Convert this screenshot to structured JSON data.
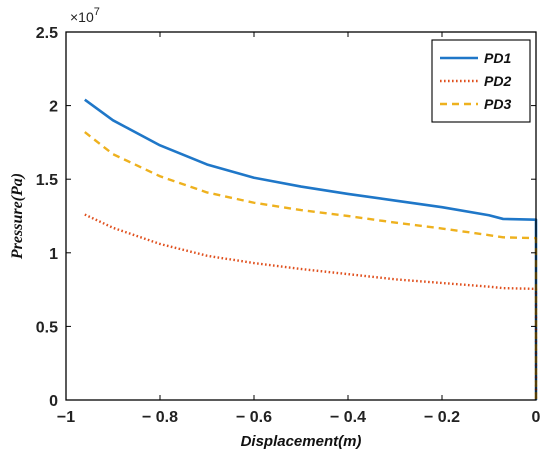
{
  "chart_data": {
    "type": "line",
    "title": "",
    "xlabel": "Displacement(m)",
    "ylabel": "Pressure(Pa)",
    "y_multiplier_label": "×10",
    "y_multiplier_exponent": "7",
    "xlim": [
      -1,
      0
    ],
    "ylim": [
      0,
      2.5
    ],
    "x_ticks": [
      -1,
      -0.8,
      -0.6,
      -0.4,
      -0.2,
      0
    ],
    "x_tick_labels": [
      "−1",
      "− 0.8",
      "− 0.6",
      "− 0.4",
      "− 0.2",
      "0"
    ],
    "y_ticks": [
      0,
      0.5,
      1,
      1.5,
      2,
      2.5
    ],
    "y_tick_labels": [
      "0",
      "0.5",
      "1",
      "1.5",
      "2",
      "2.5"
    ],
    "grid": false,
    "legend_position": "top-right",
    "x": [
      -0.96,
      -0.9,
      -0.8,
      -0.7,
      -0.6,
      -0.5,
      -0.4,
      -0.3,
      -0.2,
      -0.1,
      -0.07,
      0.0
    ],
    "series": [
      {
        "name": "PD1",
        "color": "#1f77c8",
        "style": "solid",
        "values": [
          2.04,
          1.9,
          1.73,
          1.6,
          1.51,
          1.45,
          1.4,
          1.355,
          1.31,
          1.255,
          1.23,
          1.225
        ],
        "drop_to_zero_at_end": true
      },
      {
        "name": "PD2",
        "color": "#e0501e",
        "style": "dotted",
        "values": [
          1.26,
          1.17,
          1.06,
          0.98,
          0.93,
          0.89,
          0.855,
          0.82,
          0.795,
          0.77,
          0.76,
          0.755
        ],
        "drop_to_zero_at_end": true
      },
      {
        "name": "PD3",
        "color": "#eeb11e",
        "style": "dashed",
        "values": [
          1.82,
          1.67,
          1.52,
          1.41,
          1.34,
          1.29,
          1.25,
          1.205,
          1.165,
          1.12,
          1.105,
          1.1
        ],
        "drop_to_zero_at_end": true
      }
    ]
  }
}
